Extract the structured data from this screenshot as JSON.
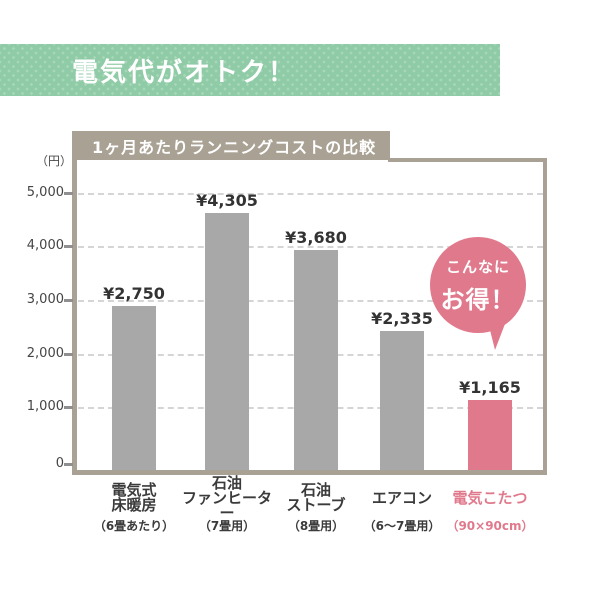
{
  "banner": {
    "label": "電気代がオトク！"
  },
  "chart": {
    "title": "1ヶ月あたりランニングコストの比較",
    "unit_label": "（円）",
    "y_ticks": [
      "5,000",
      "4,000",
      "3,000",
      "2,000",
      "1,000",
      "0"
    ]
  },
  "callout": {
    "line1": "こんなに",
    "line2": "お得！"
  },
  "chart_data": {
    "type": "bar",
    "title": "1ヶ月あたりランニングコストの比較",
    "ylabel": "円",
    "ylim": [
      0,
      5000
    ],
    "ytick_interval": 1000,
    "grid": true,
    "legend": false,
    "categories": [
      "電気式\n床暖房",
      "石油\nファンヒーター",
      "石油\nストーブ",
      "エアコン",
      "電気こたつ"
    ],
    "category_sublabels": [
      "（6畳あたり）",
      "（7畳用）",
      "（8畳用）",
      "（6～7畳用）",
      "（90×90cm）"
    ],
    "values": [
      2750,
      4305,
      3680,
      2335,
      1165
    ],
    "value_labels": [
      "¥2,750",
      "¥4,305",
      "¥3,680",
      "¥2,335",
      "¥1,165"
    ],
    "bar_colors": [
      "#a8a8a8",
      "#a8a8a8",
      "#a8a8a8",
      "#a8a8a8",
      "#e0798c"
    ],
    "label_colors": [
      "#3b3b3b",
      "#3b3b3b",
      "#3b3b3b",
      "#3b3b3b",
      "#e0798c"
    ],
    "highlight_index": 4,
    "annotation": "こんなに お得！"
  },
  "colors": {
    "banner_bg": "#8fcba6",
    "banner_dot": "#a8d7b8",
    "frame_taupe": "#a9a193",
    "bar_gray": "#a8a8a8",
    "accent_pink": "#e0798c",
    "grid_gray": "#d5d5d5",
    "text_dark": "#3b3b3b"
  }
}
